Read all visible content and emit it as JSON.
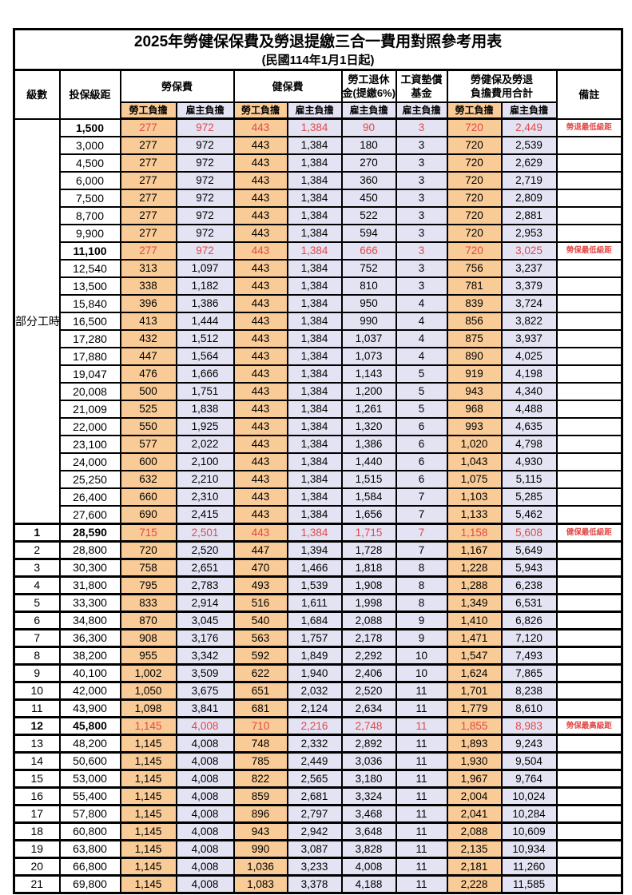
{
  "page": {
    "title": "2025年勞健保保費及勞退提繳三合一費用對照參考用表",
    "subtitle": "(民國114年1月1日起)"
  },
  "columns": {
    "level": "級數",
    "bracket": "投保級距",
    "labor_insurance": "勞保費",
    "health_insurance": "健保費",
    "pension_line1": "勞工退休",
    "pension_line2": "金(提繳6%)",
    "wage_fund_line1": "工資墊償",
    "wage_fund_line2": "基金",
    "total_line1": "勞健保及勞退",
    "total_line2": "負擔費用合計",
    "employee_share": "勞工負擔",
    "employer_share": "雇主負擔",
    "remark": "備註"
  },
  "part_time_label": "部分工時",
  "colors": {
    "employee_share_bg": "#F9CB97",
    "employer_share_bg": "#E4E3F3",
    "highlight_text": "#E04A48",
    "border": "#000000"
  },
  "rows": [
    {
      "group": "part_time",
      "level": "",
      "bracket": "1,500",
      "values": [
        "277",
        "972",
        "443",
        "1,384",
        "90",
        "3",
        "720",
        "2,449"
      ],
      "remark": "勞退最低級距",
      "highlight": true
    },
    {
      "group": "part_time",
      "level": "",
      "bracket": "3,000",
      "values": [
        "277",
        "972",
        "443",
        "1,384",
        "180",
        "3",
        "720",
        "2,539"
      ],
      "remark": "",
      "highlight": false
    },
    {
      "group": "part_time",
      "level": "",
      "bracket": "4,500",
      "values": [
        "277",
        "972",
        "443",
        "1,384",
        "270",
        "3",
        "720",
        "2,629"
      ],
      "remark": "",
      "highlight": false
    },
    {
      "group": "part_time",
      "level": "",
      "bracket": "6,000",
      "values": [
        "277",
        "972",
        "443",
        "1,384",
        "360",
        "3",
        "720",
        "2,719"
      ],
      "remark": "",
      "highlight": false
    },
    {
      "group": "part_time",
      "level": "",
      "bracket": "7,500",
      "values": [
        "277",
        "972",
        "443",
        "1,384",
        "450",
        "3",
        "720",
        "2,809"
      ],
      "remark": "",
      "highlight": false
    },
    {
      "group": "part_time",
      "level": "",
      "bracket": "8,700",
      "values": [
        "277",
        "972",
        "443",
        "1,384",
        "522",
        "3",
        "720",
        "2,881"
      ],
      "remark": "",
      "highlight": false
    },
    {
      "group": "part_time",
      "level": "",
      "bracket": "9,900",
      "values": [
        "277",
        "972",
        "443",
        "1,384",
        "594",
        "3",
        "720",
        "2,953"
      ],
      "remark": "",
      "highlight": false
    },
    {
      "group": "part_time",
      "level": "",
      "bracket": "11,100",
      "values": [
        "277",
        "972",
        "443",
        "1,384",
        "666",
        "3",
        "720",
        "3,025"
      ],
      "remark": "勞保最低級距",
      "highlight": true
    },
    {
      "group": "part_time",
      "level": "",
      "bracket": "12,540",
      "values": [
        "313",
        "1,097",
        "443",
        "1,384",
        "752",
        "3",
        "756",
        "3,237"
      ],
      "remark": "",
      "highlight": false
    },
    {
      "group": "part_time",
      "level": "",
      "bracket": "13,500",
      "values": [
        "338",
        "1,182",
        "443",
        "1,384",
        "810",
        "3",
        "781",
        "3,379"
      ],
      "remark": "",
      "highlight": false
    },
    {
      "group": "part_time",
      "level": "",
      "bracket": "15,840",
      "values": [
        "396",
        "1,386",
        "443",
        "1,384",
        "950",
        "4",
        "839",
        "3,724"
      ],
      "remark": "",
      "highlight": false
    },
    {
      "group": "part_time",
      "level": "",
      "bracket": "16,500",
      "values": [
        "413",
        "1,444",
        "443",
        "1,384",
        "990",
        "4",
        "856",
        "3,822"
      ],
      "remark": "",
      "highlight": false
    },
    {
      "group": "part_time",
      "level": "",
      "bracket": "17,280",
      "values": [
        "432",
        "1,512",
        "443",
        "1,384",
        "1,037",
        "4",
        "875",
        "3,937"
      ],
      "remark": "",
      "highlight": false
    },
    {
      "group": "part_time",
      "level": "",
      "bracket": "17,880",
      "values": [
        "447",
        "1,564",
        "443",
        "1,384",
        "1,073",
        "4",
        "890",
        "4,025"
      ],
      "remark": "",
      "highlight": false
    },
    {
      "group": "part_time",
      "level": "",
      "bracket": "19,047",
      "values": [
        "476",
        "1,666",
        "443",
        "1,384",
        "1,143",
        "5",
        "919",
        "4,198"
      ],
      "remark": "",
      "highlight": false
    },
    {
      "group": "part_time",
      "level": "",
      "bracket": "20,008",
      "values": [
        "500",
        "1,751",
        "443",
        "1,384",
        "1,200",
        "5",
        "943",
        "4,340"
      ],
      "remark": "",
      "highlight": false
    },
    {
      "group": "part_time",
      "level": "",
      "bracket": "21,009",
      "values": [
        "525",
        "1,838",
        "443",
        "1,384",
        "1,261",
        "5",
        "968",
        "4,488"
      ],
      "remark": "",
      "highlight": false
    },
    {
      "group": "part_time",
      "level": "",
      "bracket": "22,000",
      "values": [
        "550",
        "1,925",
        "443",
        "1,384",
        "1,320",
        "6",
        "993",
        "4,635"
      ],
      "remark": "",
      "highlight": false
    },
    {
      "group": "part_time",
      "level": "",
      "bracket": "23,100",
      "values": [
        "577",
        "2,022",
        "443",
        "1,384",
        "1,386",
        "6",
        "1,020",
        "4,798"
      ],
      "remark": "",
      "highlight": false
    },
    {
      "group": "part_time",
      "level": "",
      "bracket": "24,000",
      "values": [
        "600",
        "2,100",
        "443",
        "1,384",
        "1,440",
        "6",
        "1,043",
        "4,930"
      ],
      "remark": "",
      "highlight": false
    },
    {
      "group": "part_time",
      "level": "",
      "bracket": "25,250",
      "values": [
        "632",
        "2,210",
        "443",
        "1,384",
        "1,515",
        "6",
        "1,075",
        "5,115"
      ],
      "remark": "",
      "highlight": false
    },
    {
      "group": "part_time",
      "level": "",
      "bracket": "26,400",
      "values": [
        "660",
        "2,310",
        "443",
        "1,384",
        "1,584",
        "7",
        "1,103",
        "5,285"
      ],
      "remark": "",
      "highlight": false
    },
    {
      "group": "part_time",
      "level": "",
      "bracket": "27,600",
      "values": [
        "690",
        "2,415",
        "443",
        "1,384",
        "1,656",
        "7",
        "1,133",
        "5,462"
      ],
      "remark": "",
      "highlight": false
    },
    {
      "group": "level",
      "level": "1",
      "bracket": "28,590",
      "values": [
        "715",
        "2,501",
        "443",
        "1,384",
        "1,715",
        "7",
        "1,158",
        "5,608"
      ],
      "remark": "健保最低級距",
      "highlight": true
    },
    {
      "group": "level",
      "level": "2",
      "bracket": "28,800",
      "values": [
        "720",
        "2,520",
        "447",
        "1,394",
        "1,728",
        "7",
        "1,167",
        "5,649"
      ],
      "remark": "",
      "highlight": false
    },
    {
      "group": "level",
      "level": "3",
      "bracket": "30,300",
      "values": [
        "758",
        "2,651",
        "470",
        "1,466",
        "1,818",
        "8",
        "1,228",
        "5,943"
      ],
      "remark": "",
      "highlight": false
    },
    {
      "group": "level",
      "level": "4",
      "bracket": "31,800",
      "values": [
        "795",
        "2,783",
        "493",
        "1,539",
        "1,908",
        "8",
        "1,288",
        "6,238"
      ],
      "remark": "",
      "highlight": false
    },
    {
      "group": "level",
      "level": "5",
      "bracket": "33,300",
      "values": [
        "833",
        "2,914",
        "516",
        "1,611",
        "1,998",
        "8",
        "1,349",
        "6,531"
      ],
      "remark": "",
      "highlight": false
    },
    {
      "group": "level",
      "level": "6",
      "bracket": "34,800",
      "values": [
        "870",
        "3,045",
        "540",
        "1,684",
        "2,088",
        "9",
        "1,410",
        "6,826"
      ],
      "remark": "",
      "highlight": false
    },
    {
      "group": "level",
      "level": "7",
      "bracket": "36,300",
      "values": [
        "908",
        "3,176",
        "563",
        "1,757",
        "2,178",
        "9",
        "1,471",
        "7,120"
      ],
      "remark": "",
      "highlight": false
    },
    {
      "group": "level",
      "level": "8",
      "bracket": "38,200",
      "values": [
        "955",
        "3,342",
        "592",
        "1,849",
        "2,292",
        "10",
        "1,547",
        "7,493"
      ],
      "remark": "",
      "highlight": false
    },
    {
      "group": "level",
      "level": "9",
      "bracket": "40,100",
      "values": [
        "1,002",
        "3,509",
        "622",
        "1,940",
        "2,406",
        "10",
        "1,624",
        "7,865"
      ],
      "remark": "",
      "highlight": false
    },
    {
      "group": "level",
      "level": "10",
      "bracket": "42,000",
      "values": [
        "1,050",
        "3,675",
        "651",
        "2,032",
        "2,520",
        "11",
        "1,701",
        "8,238"
      ],
      "remark": "",
      "highlight": false
    },
    {
      "group": "level",
      "level": "11",
      "bracket": "43,900",
      "values": [
        "1,098",
        "3,841",
        "681",
        "2,124",
        "2,634",
        "11",
        "1,779",
        "8,610"
      ],
      "remark": "",
      "highlight": false
    },
    {
      "group": "level",
      "level": "12",
      "bracket": "45,800",
      "values": [
        "1,145",
        "4,008",
        "710",
        "2,216",
        "2,748",
        "11",
        "1,855",
        "8,983"
      ],
      "remark": "勞保最高級距",
      "highlight": true
    },
    {
      "group": "level",
      "level": "13",
      "bracket": "48,200",
      "values": [
        "1,145",
        "4,008",
        "748",
        "2,332",
        "2,892",
        "11",
        "1,893",
        "9,243"
      ],
      "remark": "",
      "highlight": false
    },
    {
      "group": "level",
      "level": "14",
      "bracket": "50,600",
      "values": [
        "1,145",
        "4,008",
        "785",
        "2,449",
        "3,036",
        "11",
        "1,930",
        "9,504"
      ],
      "remark": "",
      "highlight": false
    },
    {
      "group": "level",
      "level": "15",
      "bracket": "53,000",
      "values": [
        "1,145",
        "4,008",
        "822",
        "2,565",
        "3,180",
        "11",
        "1,967",
        "9,764"
      ],
      "remark": "",
      "highlight": false
    },
    {
      "group": "level",
      "level": "16",
      "bracket": "55,400",
      "values": [
        "1,145",
        "4,008",
        "859",
        "2,681",
        "3,324",
        "11",
        "2,004",
        "10,024"
      ],
      "remark": "",
      "highlight": false
    },
    {
      "group": "level",
      "level": "17",
      "bracket": "57,800",
      "values": [
        "1,145",
        "4,008",
        "896",
        "2,797",
        "3,468",
        "11",
        "2,041",
        "10,284"
      ],
      "remark": "",
      "highlight": false
    },
    {
      "group": "level",
      "level": "18",
      "bracket": "60,800",
      "values": [
        "1,145",
        "4,008",
        "943",
        "2,942",
        "3,648",
        "11",
        "2,088",
        "10,609"
      ],
      "remark": "",
      "highlight": false
    },
    {
      "group": "level",
      "level": "19",
      "bracket": "63,800",
      "values": [
        "1,145",
        "4,008",
        "990",
        "3,087",
        "3,828",
        "11",
        "2,135",
        "10,934"
      ],
      "remark": "",
      "highlight": false
    },
    {
      "group": "level",
      "level": "20",
      "bracket": "66,800",
      "values": [
        "1,145",
        "4,008",
        "1,036",
        "3,233",
        "4,008",
        "11",
        "2,181",
        "11,260"
      ],
      "remark": "",
      "highlight": false
    },
    {
      "group": "level",
      "level": "21",
      "bracket": "69,800",
      "values": [
        "1,145",
        "4,008",
        "1,083",
        "3,378",
        "4,188",
        "11",
        "2,228",
        "11,585"
      ],
      "remark": "",
      "highlight": false
    }
  ]
}
